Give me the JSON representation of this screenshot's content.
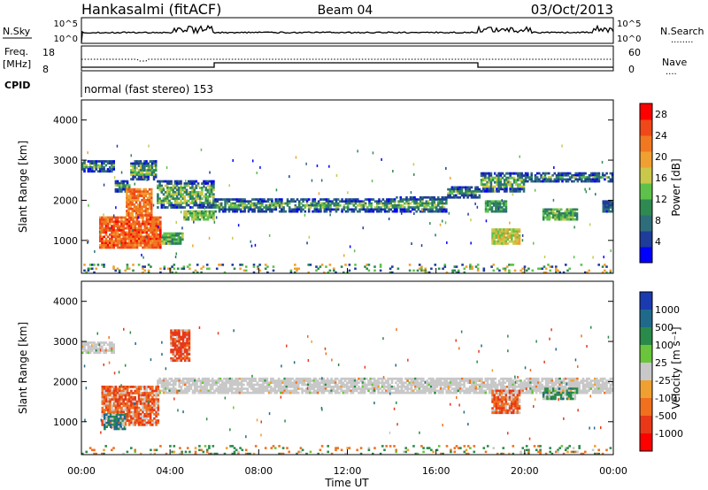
{
  "header": {
    "station": "Hankasalmi (fitACF)",
    "beam": "Beam 04",
    "date": "03/Oct/2013"
  },
  "top_panels": {
    "nsky_label": "N.Sky",
    "nsearch_label": "N.Search",
    "nsearch_dots": "........",
    "noise_ticks": [
      "10^5",
      "10^0"
    ],
    "freq_label_1": "Freq.",
    "freq_label_2": "[MHz]",
    "freq_ticks": [
      "18",
      "8"
    ],
    "nave_label": "Nave",
    "nave_dots": "....",
    "nave_ticks": [
      "60",
      "0"
    ],
    "cpid_label": "CPID",
    "cpid_text": "normal (fast stereo) 153"
  },
  "chart_data": [
    {
      "type": "heatmap",
      "name": "power",
      "xlabel": "",
      "ylabel": "Slant Range [km]",
      "xlim": [
        0,
        24
      ],
      "ylim": [
        180,
        4500
      ],
      "yticks": [
        1000,
        2000,
        3000,
        4000
      ],
      "colorbar": {
        "label": "Power [dB]",
        "ticks": [
          4,
          8,
          12,
          16,
          20,
          24,
          28
        ],
        "range": [
          0,
          30
        ],
        "colors": [
          "#0000ff",
          "#1e3c9a",
          "#2e6e7a",
          "#2f8a52",
          "#5ec24a",
          "#c9c84a",
          "#f0a030",
          "#f07820",
          "#f04818",
          "#ff0000"
        ]
      },
      "echo_bands": [
        {
          "t0": 0.0,
          "t1": 1.5,
          "r0": 2700,
          "r1": 3000
        },
        {
          "t0": 1.5,
          "t1": 2.2,
          "r0": 2200,
          "r1": 2500
        },
        {
          "t0": 2.2,
          "t1": 3.4,
          "r0": 2500,
          "r1": 3000
        },
        {
          "t0": 3.4,
          "t1": 6.0,
          "r0": 1800,
          "r1": 2500
        },
        {
          "t0": 6.0,
          "t1": 14.0,
          "r0": 1700,
          "r1": 2050
        },
        {
          "t0": 14.0,
          "t1": 16.5,
          "r0": 1700,
          "r1": 2100
        },
        {
          "t0": 16.5,
          "t1": 18.0,
          "r0": 2050,
          "r1": 2350
        },
        {
          "t0": 18.0,
          "t1": 20.0,
          "r0": 2200,
          "r1": 2700
        },
        {
          "t0": 20.0,
          "t1": 24.0,
          "r0": 2450,
          "r1": 2700
        }
      ],
      "strong_patches": [
        {
          "t0": 0.8,
          "t1": 3.6,
          "r0": 800,
          "r1": 1600,
          "level": 28
        },
        {
          "t0": 2.0,
          "t1": 3.2,
          "r0": 1600,
          "r1": 2300,
          "level": 26
        },
        {
          "t0": 3.6,
          "t1": 4.6,
          "r0": 900,
          "r1": 1200,
          "level": 16
        },
        {
          "t0": 4.6,
          "t1": 6.0,
          "r0": 1500,
          "r1": 1750,
          "level": 18
        },
        {
          "t0": 18.5,
          "t1": 19.8,
          "r0": 900,
          "r1": 1300,
          "level": 20
        },
        {
          "t0": 18.2,
          "t1": 19.2,
          "r0": 1700,
          "r1": 2000,
          "level": 14
        },
        {
          "t0": 20.8,
          "t1": 22.4,
          "r0": 1500,
          "r1": 1800,
          "level": 16
        },
        {
          "t0": 23.5,
          "t1": 24.0,
          "r0": 1700,
          "r1": 2000,
          "level": 10
        }
      ]
    },
    {
      "type": "heatmap",
      "name": "velocity",
      "xlabel": "Time UT",
      "ylabel": "Slant Range [km]",
      "xlim": [
        0,
        24
      ],
      "ylim": [
        180,
        4500
      ],
      "xticks": [
        "00:00",
        "04:00",
        "08:00",
        "12:00",
        "16:00",
        "20:00",
        "00:00"
      ],
      "yticks": [
        1000,
        2000,
        3000,
        4000
      ],
      "colorbar": {
        "label": "Velocity [m s⁻¹]",
        "ticks": [
          "1000",
          "500",
          "100",
          "25",
          "-25",
          "-100",
          "-500",
          "-1000"
        ],
        "colors": [
          "#1a3ab0",
          "#1f6a8a",
          "#2a8a4a",
          "#6ac43c",
          "#c8c8c8",
          "#f0a030",
          "#f07020",
          "#e83818",
          "#ff0000"
        ]
      },
      "ground_scatter_bands": [
        {
          "t0": 0.0,
          "t1": 1.5,
          "r0": 2700,
          "r1": 3000
        },
        {
          "t0": 3.4,
          "t1": 24.0,
          "r0": 1700,
          "r1": 2100
        }
      ],
      "flow_patches": [
        {
          "t0": 0.9,
          "t1": 3.5,
          "r0": 900,
          "r1": 1900,
          "v": -300
        },
        {
          "t0": 1.0,
          "t1": 2.0,
          "r0": 800,
          "r1": 1200,
          "v": 300
        },
        {
          "t0": 4.0,
          "t1": 4.9,
          "r0": 2500,
          "r1": 3300,
          "v": -400
        },
        {
          "t0": 18.5,
          "t1": 19.8,
          "r0": 1200,
          "r1": 1800,
          "v": -300
        },
        {
          "t0": 20.8,
          "t1": 22.4,
          "r0": 1550,
          "r1": 1850,
          "v": 150
        }
      ]
    }
  ]
}
